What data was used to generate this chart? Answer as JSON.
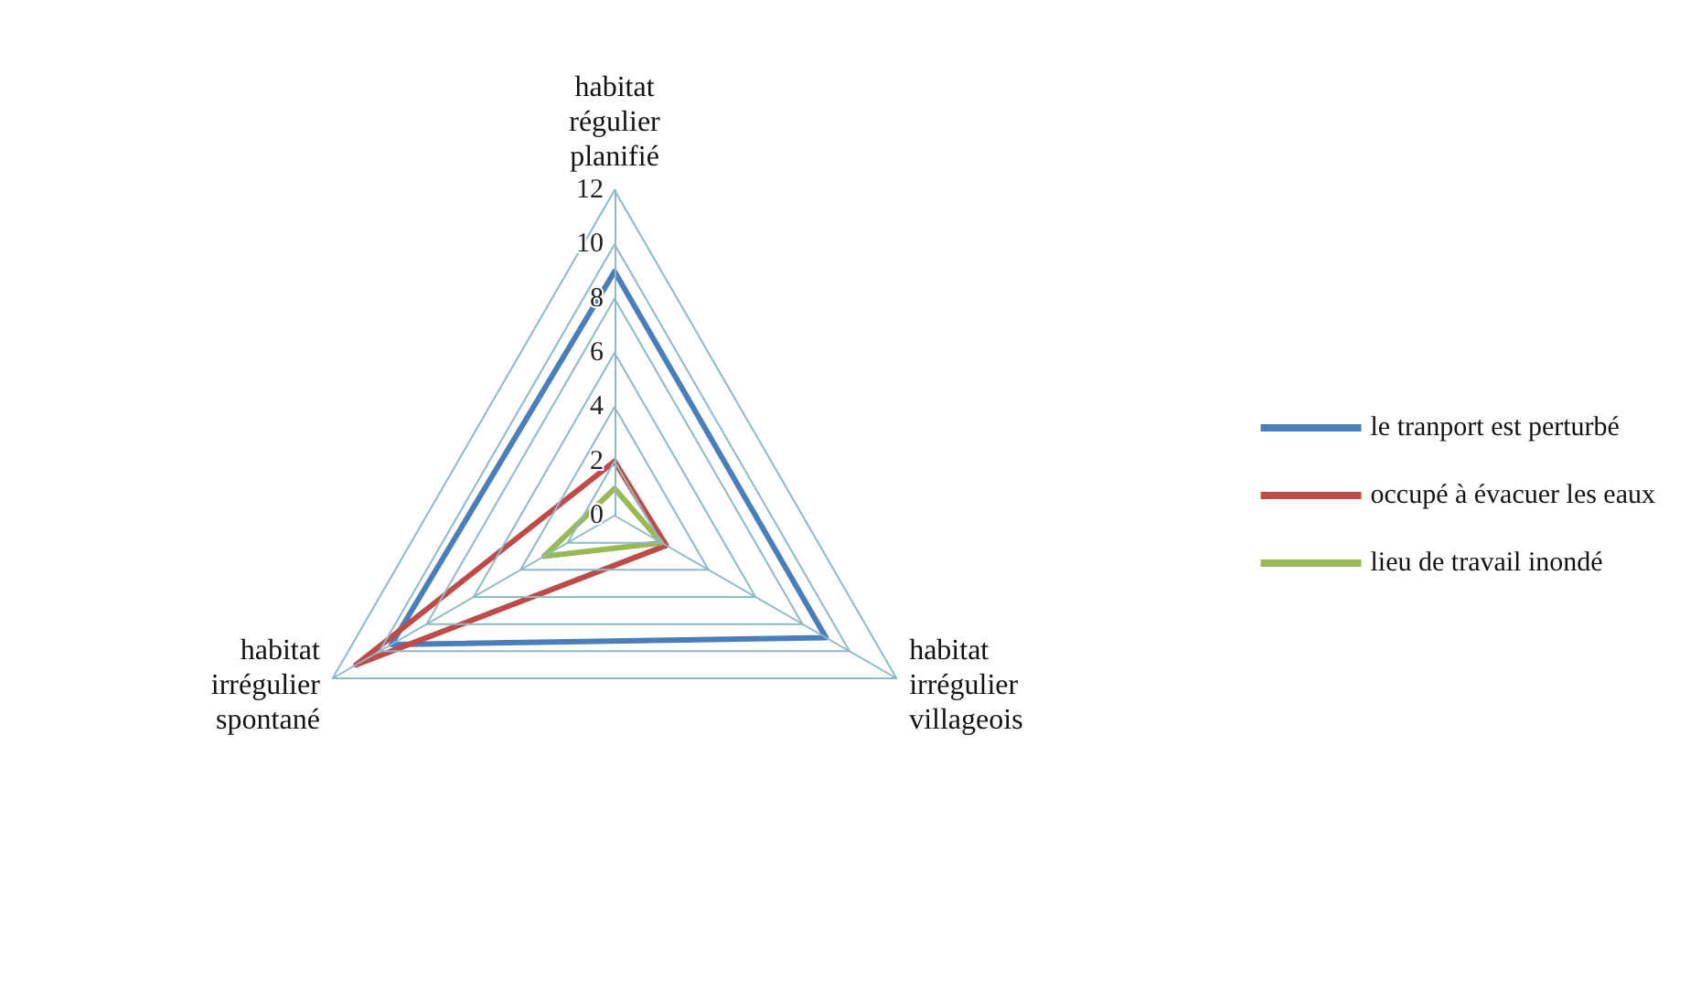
{
  "chart_data": {
    "type": "radar",
    "categories": [
      "habitat régulier planifié",
      "habitat irrégulier villageois",
      "habitat irrégulier spontané"
    ],
    "series": [
      {
        "name": "le tranport est perturbé",
        "color": "#4a7ebb",
        "values": [
          9,
          9,
          9.5
        ]
      },
      {
        "name": "occupé à évacuer les eaux",
        "color": "#be4b48",
        "values": [
          2,
          2.2,
          11
        ]
      },
      {
        "name": "lieu de travail inondé",
        "color": "#98b954",
        "values": [
          1,
          2,
          3
        ]
      }
    ],
    "ylim": [
      0,
      12
    ],
    "yticks": [
      0,
      2,
      4,
      6,
      8,
      10,
      12
    ],
    "grid": true,
    "legend": "right",
    "marker": "none",
    "line_style": "solid"
  }
}
